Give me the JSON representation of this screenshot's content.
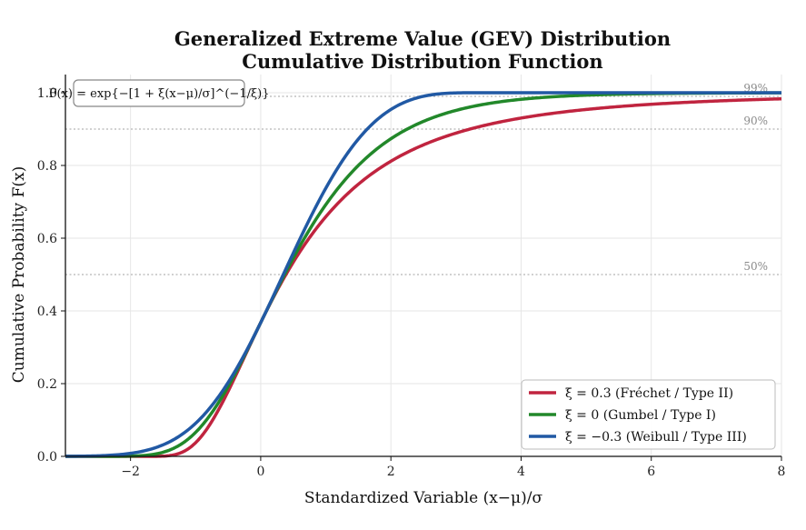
{
  "chart_data": {
    "type": "line",
    "title_line1": "Generalized Extreme Value (GEV) Distribution",
    "title_line2": "Cumulative Distribution Function",
    "xlabel": "Standardized Variable  (x−μ)/σ",
    "ylabel": "Cumulative Probability  F(x)",
    "xlim": [
      -3,
      8
    ],
    "ylim": [
      0,
      1.05
    ],
    "xticks": [
      -2,
      0,
      2,
      4,
      6,
      8
    ],
    "xtick_labels": [
      "−2",
      "0",
      "2",
      "4",
      "6",
      "8"
    ],
    "yticks": [
      0.0,
      0.2,
      0.4,
      0.6,
      0.8,
      1.0
    ],
    "ytick_labels": [
      "0.0",
      "0.2",
      "0.4",
      "0.6",
      "0.8",
      "1.0"
    ],
    "grid": true,
    "legend_position": "bottom-right",
    "formula": "F(x) = exp{−[1 + ξ(x−μ)/σ]^(−1/ξ)}",
    "reference_lines": [
      {
        "y": 0.5,
        "label": "50%"
      },
      {
        "y": 0.9,
        "label": "90%"
      },
      {
        "y": 0.99,
        "label": "99%"
      }
    ],
    "series": [
      {
        "name": "ξ = 0.3 (Fréchet / Type II)",
        "xi": 0.3,
        "color": "#c0243f",
        "x": [
          -3,
          -1.5,
          -1.0,
          -0.5,
          0,
          0.5,
          1.0,
          1.5,
          2.0,
          3.0,
          4.0,
          5.0,
          6.0,
          7.0,
          8.0
        ],
        "y": [
          0.0,
          0.0,
          0.03,
          0.16,
          0.37,
          0.56,
          0.69,
          0.77,
          0.82,
          0.89,
          0.93,
          0.95,
          0.966,
          0.976,
          0.983
        ]
      },
      {
        "name": "ξ = 0 (Gumbel / Type I)",
        "xi": 0.0,
        "color": "#22882a",
        "x": [
          -3,
          -2.0,
          -1.5,
          -1.0,
          -0.5,
          0,
          0.5,
          1.0,
          1.5,
          2.0,
          3.0,
          4.0,
          6.0,
          8.0
        ],
        "y": [
          0.0,
          0.001,
          0.011,
          0.066,
          0.192,
          0.368,
          0.545,
          0.692,
          0.8,
          0.873,
          0.951,
          0.982,
          0.998,
          1.0
        ]
      },
      {
        "name": "ξ = −0.3 (Weibull / Type III)",
        "xi": -0.3,
        "color": "#2159a4",
        "x": [
          -3,
          -2.0,
          -1.5,
          -1.0,
          -0.5,
          0,
          0.5,
          1.0,
          1.5,
          2.0,
          2.5,
          3.0,
          4.0,
          8.0
        ],
        "y": [
          0.0,
          0.01,
          0.04,
          0.11,
          0.23,
          0.37,
          0.53,
          0.69,
          0.83,
          0.94,
          0.99,
          1.0,
          1.0,
          1.0
        ]
      }
    ]
  }
}
